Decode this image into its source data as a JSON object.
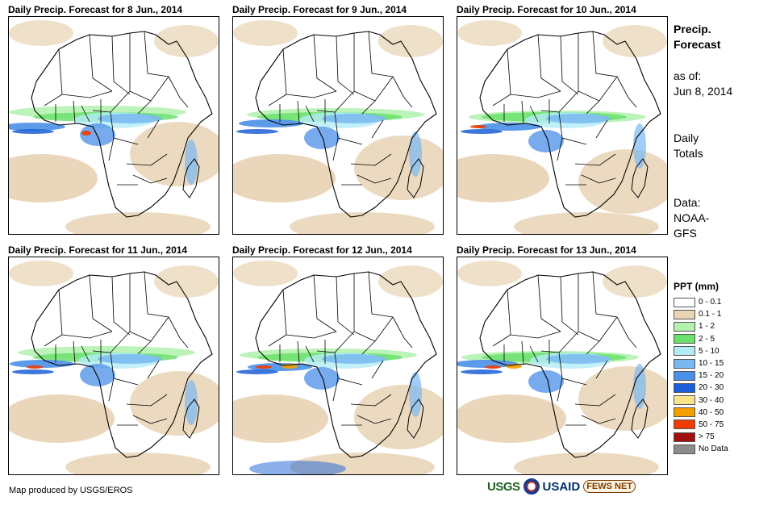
{
  "panels": [
    {
      "title": "Daily Precip. Forecast for 8 Jun., 2014"
    },
    {
      "title": "Daily Precip. Forecast for 9 Jun., 2014"
    },
    {
      "title": "Daily Precip. Forecast for 10 Jun., 2014"
    },
    {
      "title": "Daily Precip. Forecast for 11 Jun., 2014"
    },
    {
      "title": "Daily Precip. Forecast for 12 Jun., 2014"
    },
    {
      "title": "Daily Precip. Forecast for 13 Jun., 2014"
    }
  ],
  "info": {
    "heading_line1": "Precip.",
    "heading_line2": "Forecast",
    "asof_label": "as of:",
    "asof_date": "Jun 8, 2014",
    "totals_line1": "Daily",
    "totals_line2": "Totals",
    "data_line1": "Data:",
    "data_line2": "NOAA-",
    "data_line3": "GFS"
  },
  "legend": {
    "title": "PPT (mm)",
    "items": [
      {
        "label": "0 - 0.1",
        "color": "#ffffff"
      },
      {
        "label": "0.1 - 1",
        "color": "#e8d3b4"
      },
      {
        "label": "1 - 2",
        "color": "#b5f2b0"
      },
      {
        "label": "2 - 5",
        "color": "#6be06b"
      },
      {
        "label": "5 - 10",
        "color": "#b3ecf7"
      },
      {
        "label": "10 - 15",
        "color": "#7ab8f2"
      },
      {
        "label": "15 - 20",
        "color": "#4a8fe8"
      },
      {
        "label": "20 - 30",
        "color": "#1b5fd6"
      },
      {
        "label": "30 - 40",
        "color": "#fbe38a"
      },
      {
        "label": "40 - 50",
        "color": "#f5a000"
      },
      {
        "label": "50 - 75",
        "color": "#f03c00"
      },
      {
        "label": "> 75",
        "color": "#a01010"
      },
      {
        "label": "No Data",
        "color": "#8c8c8c"
      }
    ]
  },
  "footer": {
    "credit": "Map produced by USGS/EROS",
    "logo_usgs": "USGS",
    "logo_usaid": "USAID",
    "logo_fews": "FEWS NET"
  }
}
